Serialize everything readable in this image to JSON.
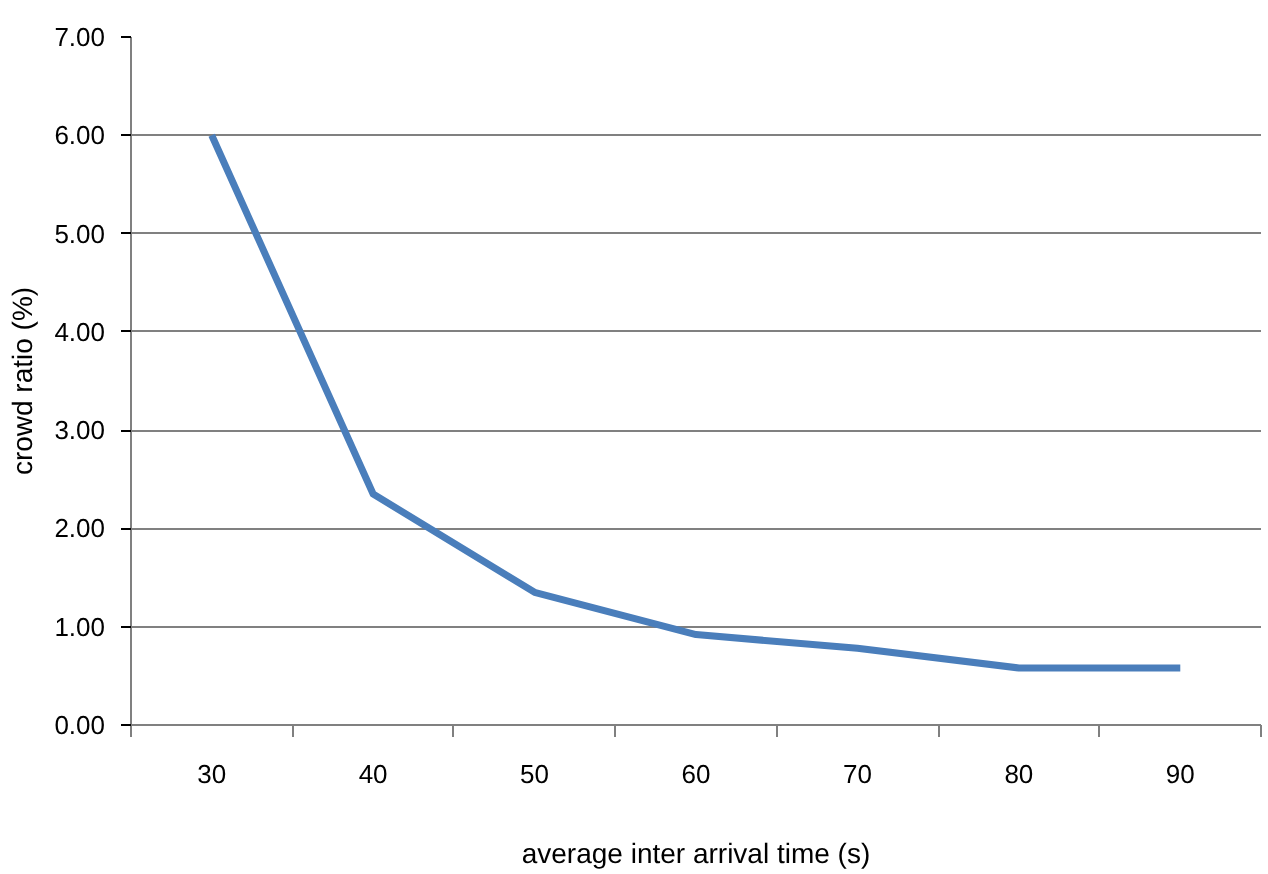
{
  "chart_data": {
    "type": "line",
    "xlabel": "average inter arrival time (s)",
    "ylabel": "crowd ratio (%)",
    "categories": [
      "30",
      "40",
      "50",
      "60",
      "70",
      "80",
      "90"
    ],
    "series": [
      {
        "color": "#4a7ebb",
        "values": [
          6.0,
          2.35,
          1.35,
          0.92,
          0.78,
          0.58,
          0.58
        ]
      }
    ],
    "ylim": [
      0,
      7
    ],
    "yticks": [
      {
        "value": 0,
        "label": "0.00"
      },
      {
        "value": 1,
        "label": "1.00"
      },
      {
        "value": 2,
        "label": "2.00"
      },
      {
        "value": 3,
        "label": "3.00"
      },
      {
        "value": 4,
        "label": "4.00"
      },
      {
        "value": 5,
        "label": "5.00"
      },
      {
        "value": 6,
        "label": "6.00"
      },
      {
        "value": 7,
        "label": "7.00"
      }
    ],
    "grid": "y",
    "marker": "none",
    "line_style": "solid"
  }
}
